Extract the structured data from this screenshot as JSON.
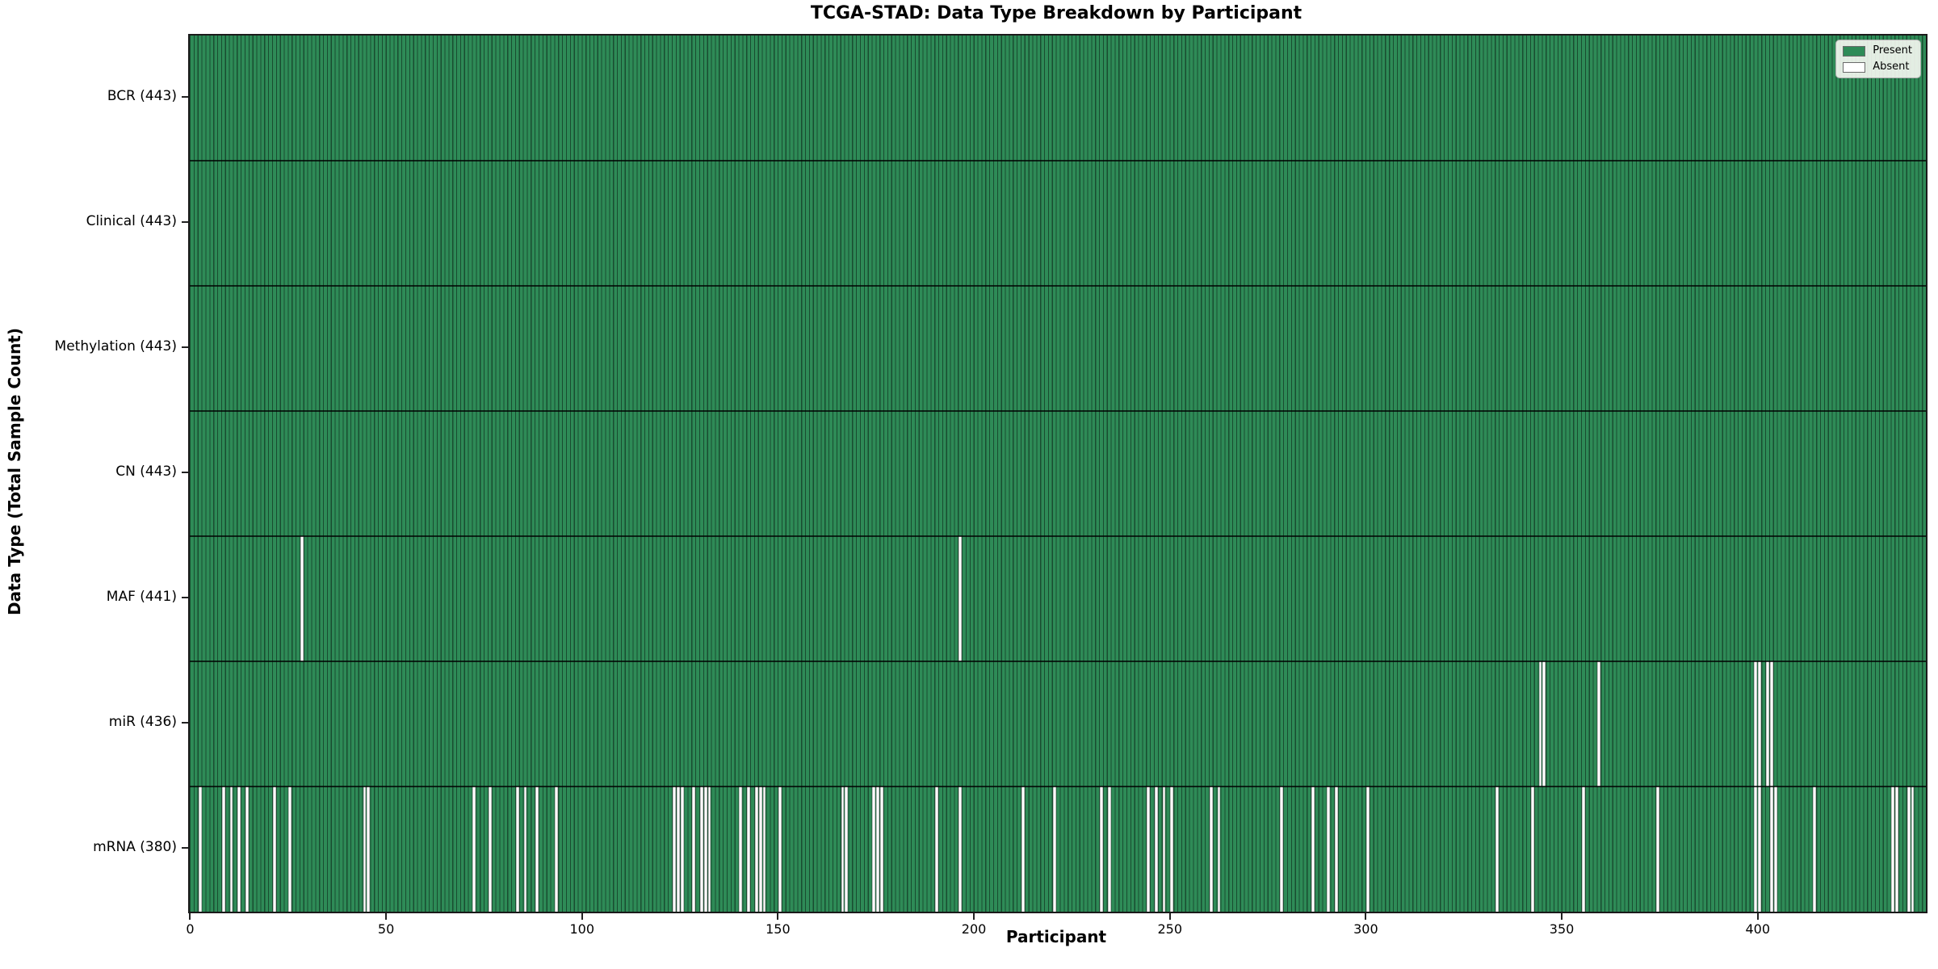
{
  "figure": {
    "title": "TCGA-STAD: Data Type Breakdown by Participant",
    "x_axis_label": "Participant",
    "y_axis_label": "Data Type (Total Sample Count)"
  },
  "legend": {
    "items": [
      {
        "label": "Present",
        "color": "#2e8b57"
      },
      {
        "label": "Absent",
        "color": "#ffffff"
      }
    ]
  },
  "chart_data": {
    "type": "heatmap",
    "title": "TCGA-STAD: Data Type Breakdown by Participant",
    "xlabel": "Participant",
    "ylabel": "Data Type (Total Sample Count)",
    "n_participants": 443,
    "x_ticks": [
      0,
      50,
      100,
      150,
      200,
      250,
      300,
      350,
      400
    ],
    "present_color": "#2e8b57",
    "absent_color": "#ffffff",
    "legend_position": "upper right",
    "rows": [
      {
        "label": "BCR (443)",
        "name": "BCR",
        "present_count": 443,
        "absent_participants": []
      },
      {
        "label": "Clinical (443)",
        "name": "Clinical",
        "present_count": 443,
        "absent_participants": []
      },
      {
        "label": "Methylation (443)",
        "name": "Methylation",
        "present_count": 443,
        "absent_participants": []
      },
      {
        "label": "CN (443)",
        "name": "CN",
        "present_count": 443,
        "absent_participants": []
      },
      {
        "label": "MAF (441)",
        "name": "MAF",
        "present_count": 441,
        "absent_participants": [
          28,
          196
        ]
      },
      {
        "label": "miR (436)",
        "name": "miR",
        "present_count": 436,
        "absent_participants": [
          344,
          345,
          359,
          399,
          400,
          402,
          403
        ]
      },
      {
        "label": "mRNA (380)",
        "name": "mRNA",
        "present_count": 380,
        "absent_participants": [
          2,
          8,
          10,
          12,
          14,
          21,
          25,
          44,
          45,
          72,
          76,
          83,
          85,
          88,
          93,
          123,
          124,
          125,
          128,
          130,
          131,
          132,
          140,
          142,
          144,
          145,
          146,
          150,
          166,
          167,
          174,
          175,
          176,
          190,
          196,
          212,
          220,
          232,
          234,
          244,
          246,
          248,
          250,
          260,
          262,
          278,
          286,
          290,
          292,
          300,
          333,
          342,
          355,
          374,
          399,
          400,
          403,
          404,
          414,
          434,
          435,
          438,
          439
        ]
      }
    ]
  }
}
